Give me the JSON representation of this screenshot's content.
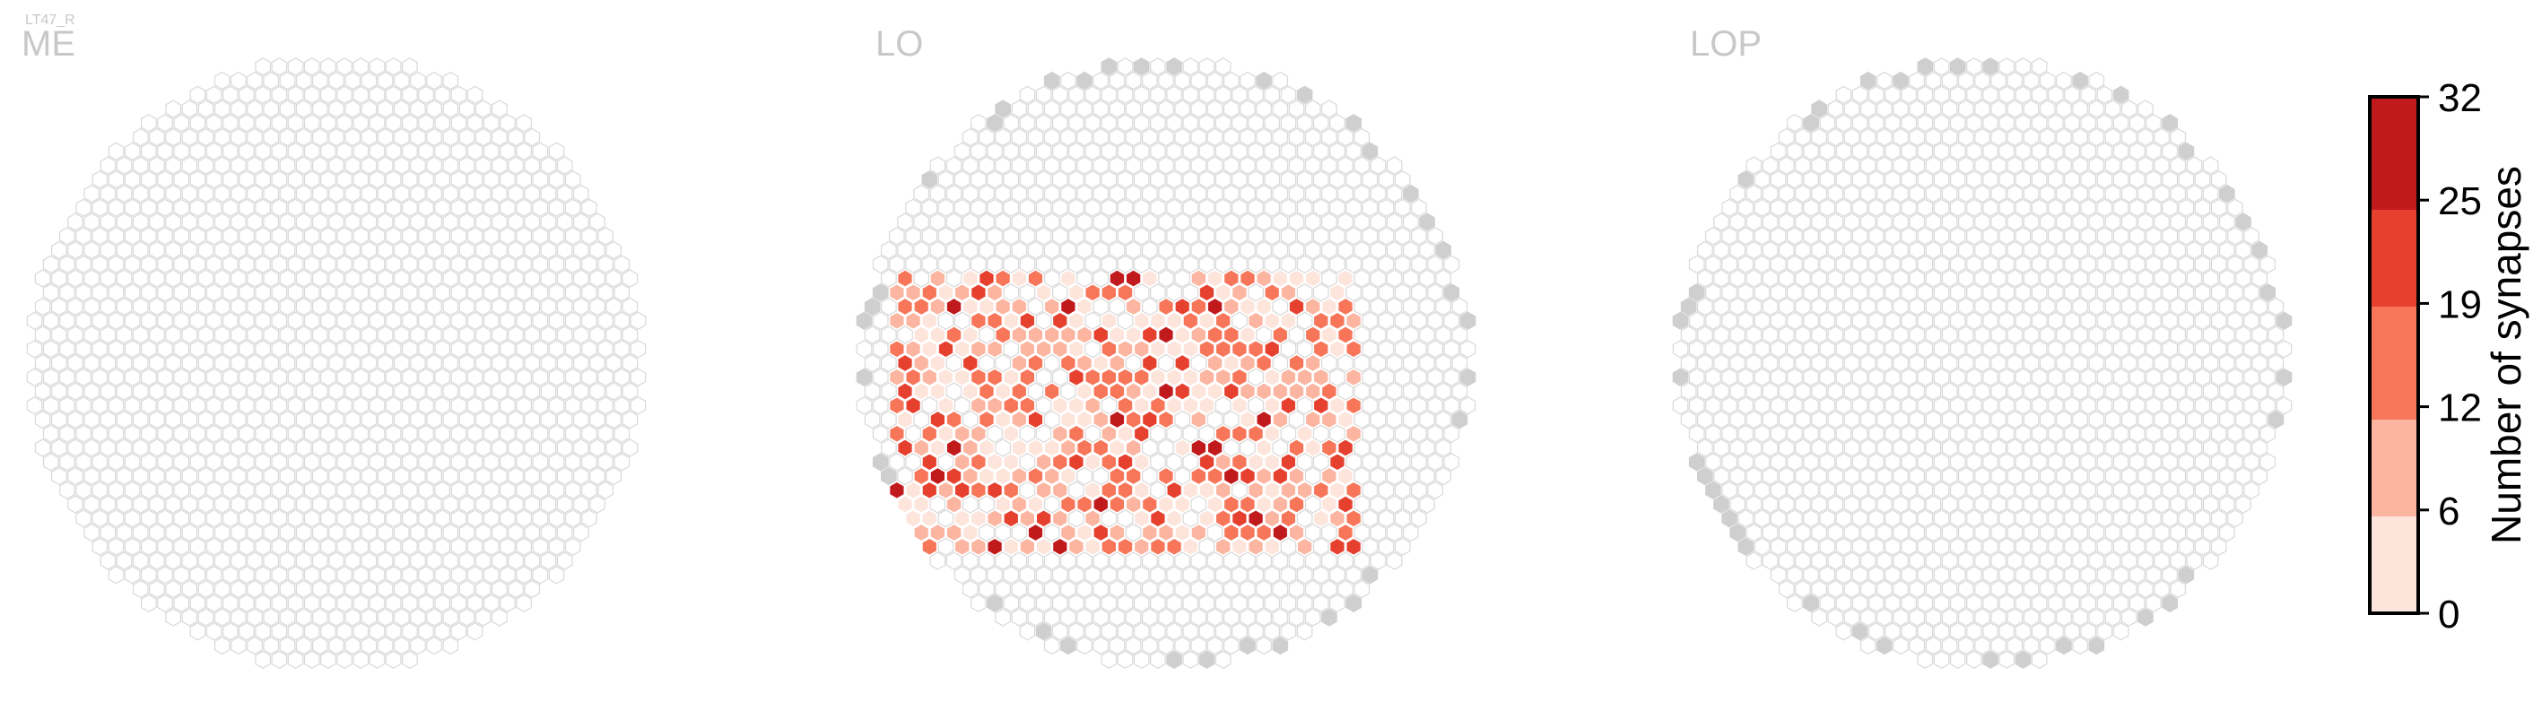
{
  "figure": {
    "cell_type_label": "LT47_R"
  },
  "chart_data": {
    "type": "heatmap",
    "layout": "hexagonal",
    "panels": [
      {
        "name": "ME",
        "label": "ME",
        "data": []
      },
      {
        "name": "LO",
        "label": "LO",
        "data": [
          {
            "ring": 2,
            "level": 1
          },
          {
            "ring": 2,
            "level": 2
          },
          {
            "ring": 2,
            "level": 1
          },
          {
            "ring": 3,
            "level": 2
          },
          {
            "ring": 3,
            "level": 3
          },
          {
            "ring": 3,
            "level": 4
          },
          {
            "ring": 4,
            "level": 3
          },
          {
            "ring": 4,
            "level": 5
          },
          {
            "ring": 4,
            "level": 4
          },
          {
            "ring": 5,
            "level": 4
          },
          {
            "ring": 5,
            "level": 3
          },
          {
            "ring": 5,
            "level": 2
          },
          {
            "ring": 6,
            "level": 2
          },
          {
            "ring": 6,
            "level": 6
          },
          {
            "ring": 6,
            "level": 1
          }
        ]
      },
      {
        "name": "LOP",
        "label": "LOP",
        "data": []
      }
    ],
    "colorbar": {
      "label": "Number of synapses",
      "ticks": [
        "32",
        "25",
        "19",
        "12",
        "6",
        "0"
      ],
      "range": [
        0,
        32
      ],
      "bins": [
        {
          "from": 0,
          "to": 6,
          "color": "#fde5dc"
        },
        {
          "from": 6,
          "to": 12,
          "color": "#fbb5a0"
        },
        {
          "from": 12,
          "to": 19,
          "color": "#f7765a"
        },
        {
          "from": 19,
          "to": 25,
          "color": "#e6402f"
        },
        {
          "from": 25,
          "to": 32,
          "color": "#c11a1d"
        },
        {
          "from": 32,
          "to": 32,
          "color": "#a50f15"
        }
      ]
    },
    "empty_cell_color": "#ffffff",
    "empty_cell_stroke": "#d9d9d9",
    "boundary_cell_color": "#cfcfcf",
    "title_color": "#c8c8c8",
    "grid": false
  }
}
